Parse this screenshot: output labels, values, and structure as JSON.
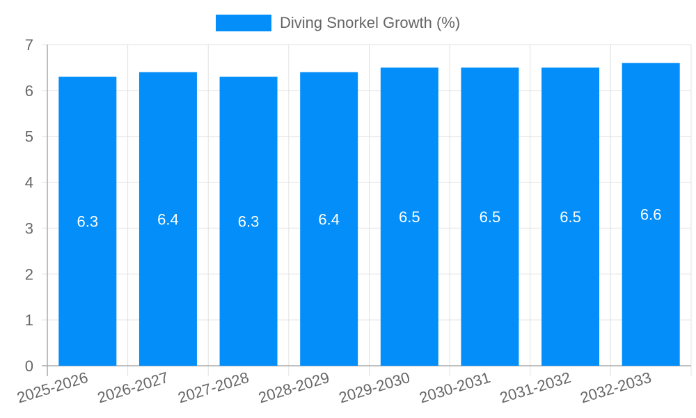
{
  "chart_data": {
    "type": "bar",
    "title": "",
    "categories": [
      "2025-2026",
      "2026-2027",
      "2027-2028",
      "2028-2029",
      "2029-2030",
      "2030-2031",
      "2031-2032",
      "2032-2033"
    ],
    "series": [
      {
        "name": "Diving Snorkel Growth (%)",
        "values": [
          6.3,
          6.4,
          6.3,
          6.4,
          6.5,
          6.5,
          6.5,
          6.6
        ],
        "color": "#038ef9"
      }
    ],
    "xlabel": "",
    "ylabel": "",
    "ylim": [
      0,
      7
    ],
    "yticks": [
      0,
      1,
      2,
      3,
      4,
      5,
      6,
      7
    ],
    "grid": true,
    "legend_position": "top",
    "data_labels": true
  },
  "legend": {
    "label": "Diving Snorkel Growth (%)"
  }
}
